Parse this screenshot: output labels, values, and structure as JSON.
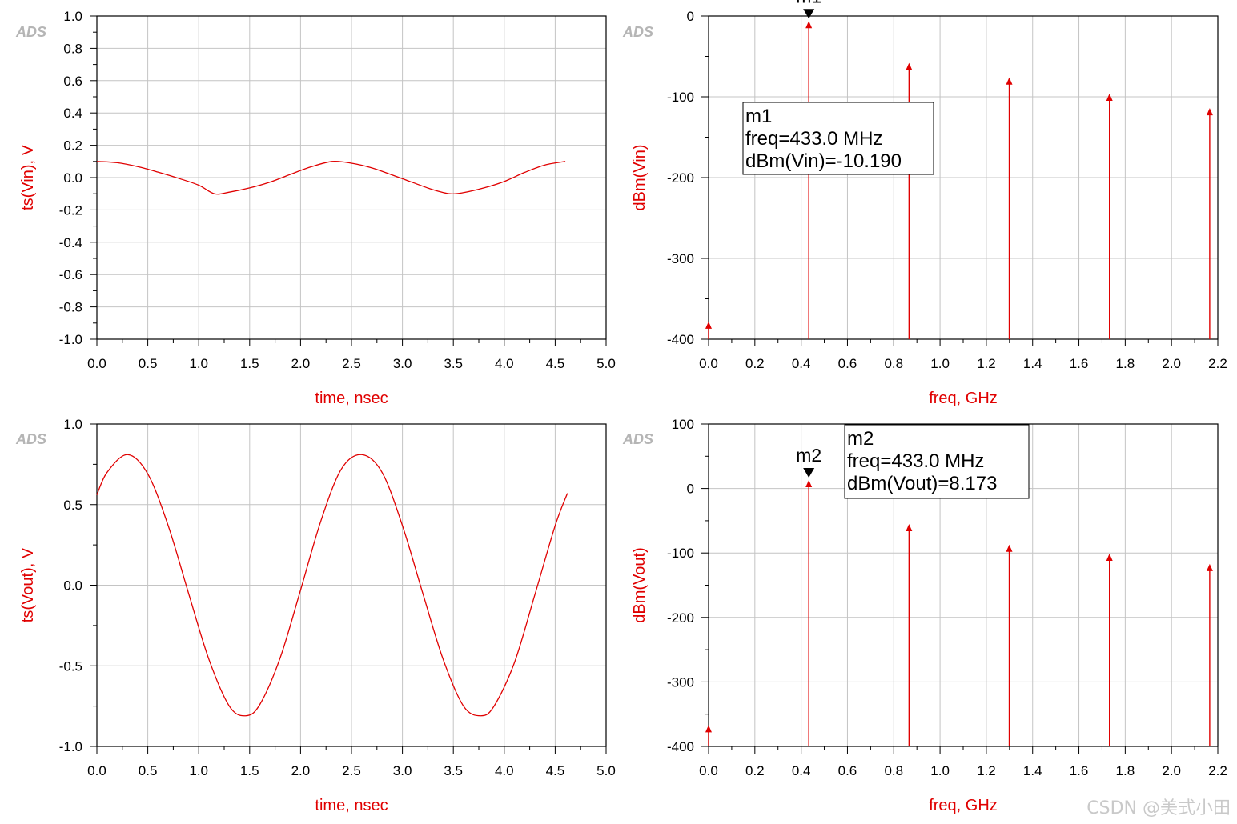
{
  "watermark": "CSDN @美式小田",
  "chart_data": [
    {
      "type": "line",
      "logo": "ADS",
      "xlabel": "time, nsec",
      "ylabel": "ts(Vin), V",
      "xlim": [
        0,
        5
      ],
      "ylim": [
        -1,
        1
      ],
      "xticks": [
        "0.0",
        "0.5",
        "1.0",
        "1.5",
        "2.0",
        "2.5",
        "3.0",
        "3.5",
        "4.0",
        "4.5",
        "5.0"
      ],
      "yticks": [
        "1.0",
        "0.8",
        "0.6",
        "0.4",
        "0.2",
        "0.0",
        "-0.2",
        "-0.4",
        "-0.6",
        "-0.8",
        "-1.0"
      ],
      "grid": true,
      "series": [
        {
          "x": [
            0,
            0.2,
            0.4,
            0.6,
            0.8,
            1.0,
            1.155,
            1.3,
            1.5,
            1.7,
            1.9,
            2.1,
            2.31,
            2.5,
            2.7,
            2.9,
            3.1,
            3.3,
            3.465,
            3.6,
            3.8,
            4.0,
            4.2,
            4.4,
            4.6
          ],
          "y": [
            0.1,
            0.092,
            0.068,
            0.034,
            -0.004,
            -0.047,
            -0.1,
            -0.09,
            -0.064,
            -0.028,
            0.02,
            0.066,
            0.1,
            0.089,
            0.06,
            0.016,
            -0.03,
            -0.075,
            -0.1,
            -0.093,
            -0.064,
            -0.024,
            0.032,
            0.078,
            0.1
          ]
        }
      ]
    },
    {
      "type": "stem",
      "logo": "ADS",
      "xlabel": "freq, GHz",
      "ylabel": "dBm(Vin)",
      "xlim": [
        0,
        2.2
      ],
      "ylim": [
        -400,
        0
      ],
      "xticks": [
        "0.0",
        "0.2",
        "0.4",
        "0.6",
        "0.8",
        "1.0",
        "1.2",
        "1.4",
        "1.6",
        "1.8",
        "2.0",
        "2.2"
      ],
      "yticks": [
        "0",
        "-100",
        "-200",
        "-300",
        "-400"
      ],
      "grid": true,
      "series": [
        {
          "x": [
            0,
            0.433,
            0.866,
            1.299,
            1.732,
            2.165
          ],
          "y": [
            -382,
            -10.19,
            -62,
            -80,
            -100,
            -118
          ]
        }
      ],
      "marker": {
        "name": "m1",
        "x": 0.433,
        "y": -10.19,
        "lines": [
          "m1",
          "freq=433.0 MHz",
          "dBm(Vin)=-10.190"
        ]
      }
    },
    {
      "type": "line",
      "logo": "ADS",
      "xlabel": "time, nsec",
      "ylabel": "ts(Vout), V",
      "xlim": [
        0,
        5
      ],
      "ylim": [
        -1,
        1
      ],
      "xticks": [
        "0.0",
        "0.5",
        "1.0",
        "1.5",
        "2.0",
        "2.5",
        "3.0",
        "3.5",
        "4.0",
        "4.5",
        "5.0"
      ],
      "yticks": [
        "1.0",
        "0.5",
        "0.0",
        "-0.5",
        "-1.0"
      ],
      "grid": true,
      "series": [
        {
          "x": [
            0,
            0.1,
            0.3,
            0.5,
            0.7,
            0.9,
            1.1,
            1.3,
            1.46,
            1.6,
            1.8,
            2.0,
            2.2,
            2.4,
            2.6,
            2.8,
            3.0,
            3.2,
            3.4,
            3.6,
            3.77,
            3.9,
            4.1,
            4.3,
            4.5,
            4.62
          ],
          "y": [
            0.56,
            0.7,
            0.81,
            0.69,
            0.37,
            -0.05,
            -0.46,
            -0.75,
            -0.81,
            -0.74,
            -0.45,
            -0.03,
            0.4,
            0.72,
            0.81,
            0.7,
            0.37,
            -0.05,
            -0.46,
            -0.75,
            -0.81,
            -0.75,
            -0.48,
            -0.06,
            0.37,
            0.57
          ]
        }
      ]
    },
    {
      "type": "stem",
      "logo": "ADS",
      "xlabel": "freq, GHz",
      "ylabel": "dBm(Vout)",
      "xlim": [
        0,
        2.2
      ],
      "ylim": [
        -400,
        100
      ],
      "xticks": [
        "0.0",
        "0.2",
        "0.4",
        "0.6",
        "0.8",
        "1.0",
        "1.2",
        "1.4",
        "1.6",
        "1.8",
        "2.0",
        "2.2"
      ],
      "yticks": [
        "100",
        "0",
        "-100",
        "-200",
        "-300",
        "-400"
      ],
      "grid": true,
      "series": [
        {
          "x": [
            0,
            0.433,
            0.866,
            1.299,
            1.732,
            2.165
          ],
          "y": [
            -372,
            8.173,
            -60,
            -92,
            -106,
            -122
          ]
        }
      ],
      "marker": {
        "name": "m2",
        "x": 0.433,
        "y": 8.173,
        "lines": [
          "m2",
          "freq=433.0 MHz",
          "dBm(Vout)=8.173"
        ]
      }
    }
  ]
}
